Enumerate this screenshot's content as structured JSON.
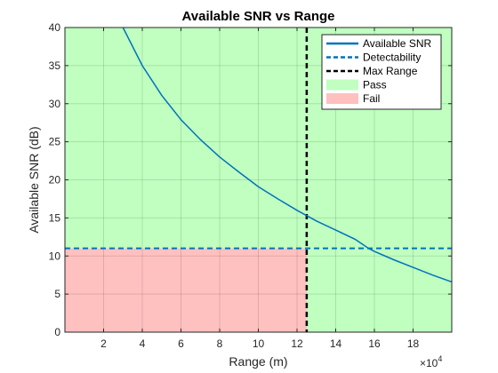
{
  "chart_data": {
    "type": "line",
    "title": "Available SNR vs Range",
    "xlabel": "Range (m)",
    "ylabel": "Available SNR (dB)",
    "x_multiplier": "×10^4",
    "x_multiplier_base": "×10",
    "x_multiplier_exp": "4",
    "x_scale": 10000,
    "xlim": [
      0,
      200000
    ],
    "ylim": [
      0,
      40
    ],
    "xticks": [
      20000,
      40000,
      60000,
      80000,
      100000,
      120000,
      140000,
      160000,
      180000
    ],
    "xtick_labels": [
      "2",
      "4",
      "6",
      "8",
      "10",
      "12",
      "14",
      "16",
      "18"
    ],
    "yticks": [
      0,
      5,
      10,
      15,
      20,
      25,
      30,
      35,
      40
    ],
    "ytick_labels": [
      "0",
      "5",
      "10",
      "15",
      "20",
      "25",
      "30",
      "35",
      "40"
    ],
    "grid": true,
    "legend_position": "top-right",
    "series": [
      {
        "name": "Available SNR",
        "style": "solid",
        "color": "#0072BD",
        "x": [
          30000,
          40000,
          50000,
          60000,
          70000,
          80000,
          90000,
          100000,
          110000,
          120000,
          125000,
          130000,
          140000,
          150000,
          157000,
          160000,
          170000,
          180000,
          190000,
          200000
        ],
        "y": [
          40.0,
          35.0,
          31.1,
          27.9,
          25.3,
          23.0,
          21.0,
          19.1,
          17.5,
          16.0,
          15.3,
          14.6,
          13.4,
          12.2,
          11.0,
          10.6,
          9.5,
          8.5,
          7.5,
          6.6
        ]
      },
      {
        "name": "Detectability",
        "style": "dashed",
        "color": "#0072BD",
        "y_const": 11
      },
      {
        "name": "Max Range",
        "style": "dashed",
        "color": "#000000",
        "x_const": 125000
      }
    ],
    "regions": [
      {
        "name": "Pass",
        "color": "#C0FFC0"
      },
      {
        "name": "Fail",
        "color": "#FFC0C0",
        "x": [
          0,
          125000
        ],
        "y": [
          0,
          11
        ]
      }
    ]
  }
}
